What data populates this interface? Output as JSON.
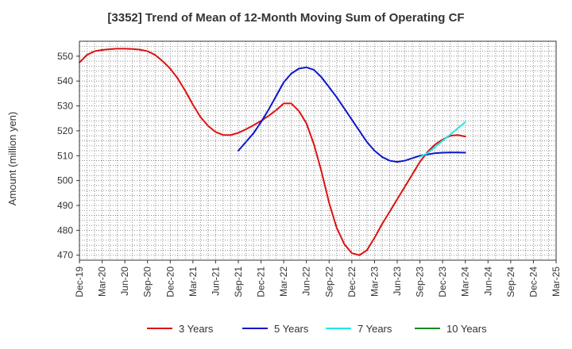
{
  "chart_data": {
    "type": "line",
    "title": "[3352]  Trend of Mean of 12-Month Moving Sum of Operating CF",
    "xlabel": "",
    "ylabel": "Amount (million yen)",
    "ylim": [
      468,
      556
    ],
    "yticks": [
      470,
      480,
      490,
      500,
      510,
      520,
      530,
      540,
      550
    ],
    "x_tick_labels": [
      "Dec-19",
      "Mar-20",
      "Jun-20",
      "Sep-20",
      "Dec-20",
      "Mar-21",
      "Jun-21",
      "Sep-21",
      "Dec-21",
      "Mar-22",
      "Jun-22",
      "Sep-22",
      "Dec-22",
      "Mar-23",
      "Jun-23",
      "Sep-23",
      "Dec-23",
      "Mar-24",
      "Jun-24",
      "Sep-24",
      "Dec-24",
      "Mar-25"
    ],
    "grid": true,
    "legend_position": "bottom",
    "series": [
      {
        "name": "3 Years",
        "color": "#dd1111",
        "x": [
          "Dec-19",
          "Jan-20",
          "Feb-20",
          "Mar-20",
          "Apr-20",
          "May-20",
          "Jun-20",
          "Jul-20",
          "Aug-20",
          "Sep-20",
          "Oct-20",
          "Nov-20",
          "Dec-20",
          "Jan-21",
          "Feb-21",
          "Mar-21",
          "Apr-21",
          "May-21",
          "Jun-21",
          "Jul-21",
          "Aug-21",
          "Sep-21",
          "Oct-21",
          "Nov-21",
          "Dec-21",
          "Jan-22",
          "Feb-22",
          "Mar-22",
          "Apr-22",
          "May-22",
          "Jun-22",
          "Jul-22",
          "Aug-22",
          "Sep-22",
          "Oct-22",
          "Nov-22",
          "Dec-22",
          "Jan-23",
          "Feb-23",
          "Mar-23",
          "Apr-23",
          "May-23",
          "Jun-23",
          "Jul-23",
          "Aug-23",
          "Sep-23",
          "Oct-23",
          "Nov-23",
          "Dec-23",
          "Jan-24",
          "Feb-24",
          "Mar-24"
        ],
        "values": [
          547.5,
          550.5,
          552.0,
          552.5,
          552.8,
          553.0,
          553.0,
          552.9,
          552.6,
          552.0,
          550.5,
          548.0,
          545.0,
          541.0,
          536.0,
          530.5,
          525.5,
          522.0,
          519.5,
          518.3,
          518.3,
          519.2,
          520.6,
          522.2,
          524.0,
          526.0,
          528.3,
          531.0,
          531.0,
          528.0,
          523.0,
          514.5,
          503.5,
          491.0,
          481.0,
          474.5,
          470.8,
          470.0,
          472.0,
          477.0,
          482.5,
          487.5,
          492.5,
          497.5,
          502.5,
          507.5,
          511.5,
          514.5,
          516.5,
          518.0,
          518.3,
          517.7
        ]
      },
      {
        "name": "5 Years",
        "color": "#0b17c9",
        "x": [
          "Sep-21",
          "Oct-21",
          "Nov-21",
          "Dec-21",
          "Jan-22",
          "Feb-22",
          "Mar-22",
          "Apr-22",
          "May-22",
          "Jun-22",
          "Jul-22",
          "Aug-22",
          "Sep-22",
          "Oct-22",
          "Nov-22",
          "Dec-22",
          "Jan-23",
          "Feb-23",
          "Mar-23",
          "Apr-23",
          "May-23",
          "Jun-23",
          "Jul-23",
          "Aug-23",
          "Sep-23",
          "Oct-23",
          "Nov-23",
          "Dec-23",
          "Jan-24",
          "Feb-24",
          "Mar-24"
        ],
        "values": [
          512.0,
          515.5,
          519.0,
          523.5,
          528.5,
          534.0,
          539.5,
          543.0,
          545.0,
          545.5,
          544.5,
          541.5,
          537.5,
          533.5,
          529.0,
          524.5,
          520.0,
          515.5,
          512.0,
          509.5,
          508.0,
          507.5,
          508.0,
          509.0,
          510.0,
          510.5,
          511.0,
          511.2,
          511.3,
          511.3,
          511.2
        ]
      },
      {
        "name": "7 Years",
        "color": "#22e6e6",
        "x": [
          "Sep-23",
          "Oct-23",
          "Nov-23",
          "Dec-23",
          "Jan-24",
          "Feb-24",
          "Mar-24"
        ],
        "values": [
          509.5,
          511.0,
          513.5,
          516.0,
          518.5,
          521.0,
          523.5
        ]
      },
      {
        "name": "10 Years",
        "color": "#1a8a1a",
        "x": [],
        "values": []
      }
    ]
  }
}
